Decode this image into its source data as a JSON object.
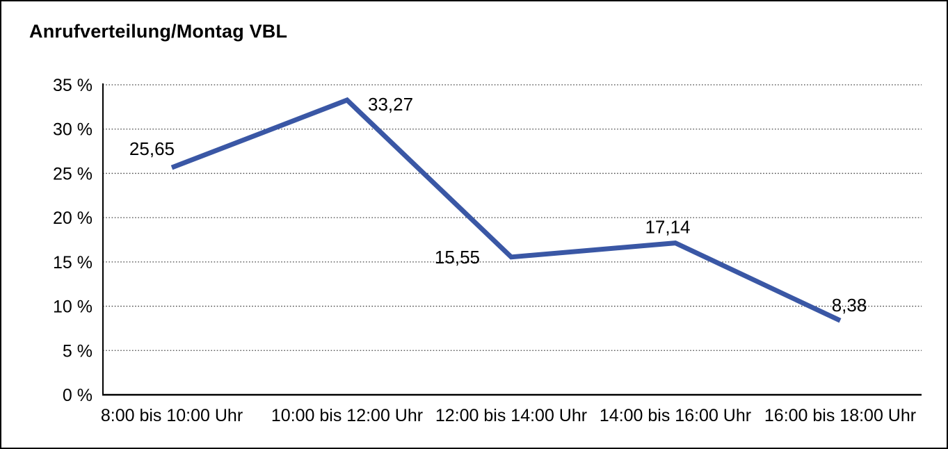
{
  "title": "Anrufverteilung/Montag VBL",
  "colors": {
    "line": "#3A57A5",
    "axis": "#000000",
    "grid": "#444444",
    "background": "#FFFFFF",
    "border": "#000000",
    "text": "#000000"
  },
  "chart_data": {
    "type": "line",
    "title": "Anrufverteilung/Montag VBL",
    "categories": [
      "8:00 bis 10:00 Uhr",
      "10:00 bis 12:00 Uhr",
      "12:00 bis 14:00 Uhr",
      "14:00 bis 16:00 Uhr",
      "16:00 bis 18:00 Uhr"
    ],
    "values": [
      25.65,
      33.27,
      15.55,
      17.14,
      8.38
    ],
    "value_labels": [
      "25,65",
      "33,27",
      "15,55",
      "17,14",
      "8,38"
    ],
    "series_name": "Anrufverteilung Montag VBL",
    "xlabel": "",
    "ylabel": "",
    "ylim": [
      0,
      35
    ],
    "ytick_step": 5,
    "ytick_labels": [
      "0 %",
      "5 %",
      "10 %",
      "15 %",
      "20 %",
      "25 %",
      "30 %",
      "35 %"
    ],
    "grid": "horizontal-dotted",
    "legend": "none",
    "unit": "percent"
  }
}
